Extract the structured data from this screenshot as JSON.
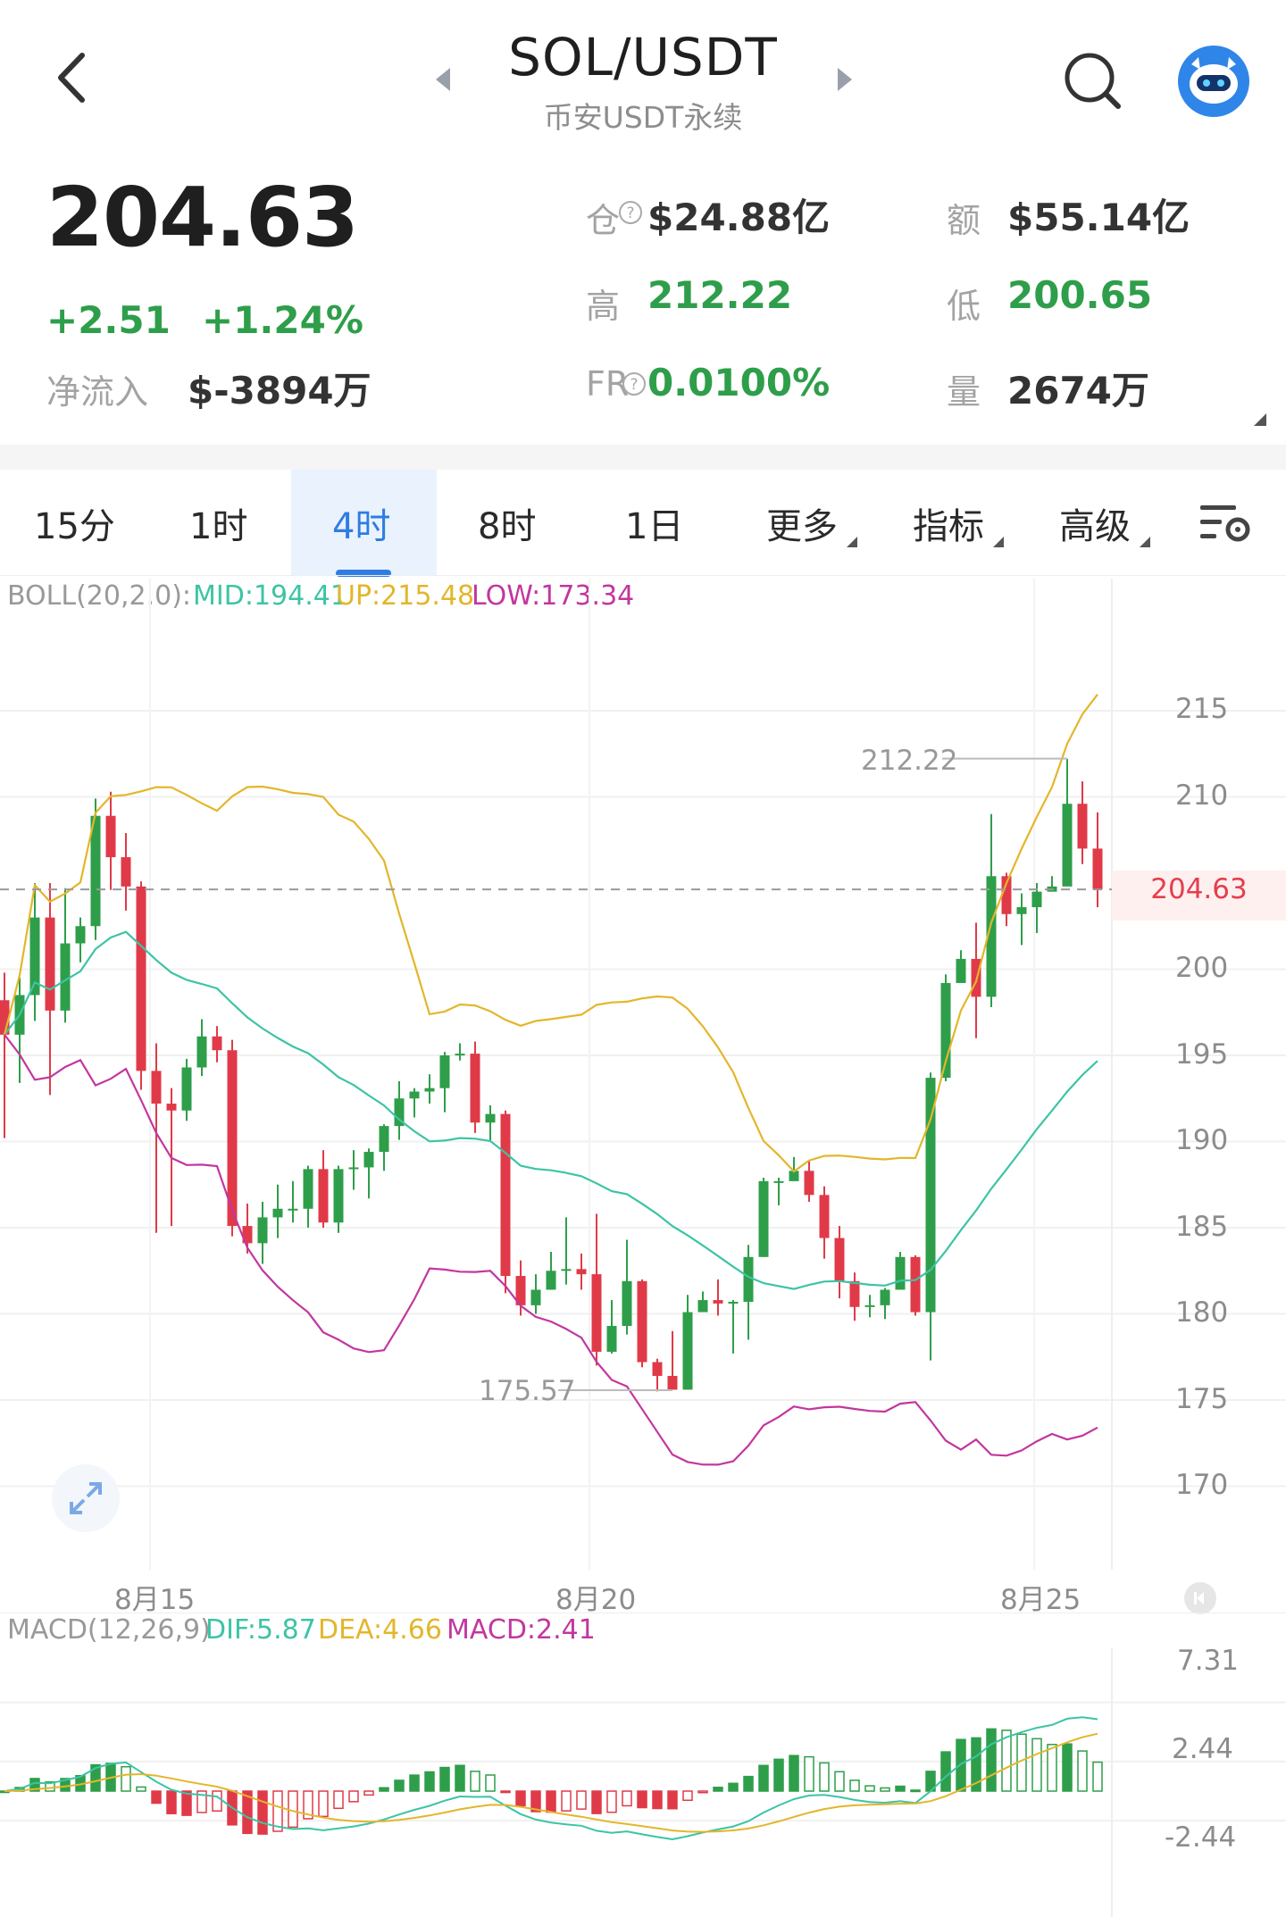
{
  "header": {
    "title": "SOL/USDT",
    "subtitle": "币安USDT永续",
    "back_icon": "chevron-left-icon",
    "prev_icon": "caret-left-icon",
    "next_icon": "caret-right-icon",
    "search_icon": "search-icon",
    "avatar_icon": "robot-avatar-icon"
  },
  "ticker": {
    "price": "204.63",
    "change": "+2.51",
    "change_pct": "+1.24%",
    "netflow_label": "净流入",
    "netflow_value": "$-3894万",
    "oi_label": "仓",
    "oi_value": "$24.88亿",
    "amount_label": "额",
    "amount_value": "$55.14亿",
    "high_label": "高",
    "high_value": "212.22",
    "low_label": "低",
    "low_value": "200.65",
    "fr_label": "FR",
    "fr_value": "0.0100%",
    "vol_label": "量",
    "vol_value": "2674万"
  },
  "tabs": [
    {
      "label": "15分"
    },
    {
      "label": "1时"
    },
    {
      "label": "4时"
    },
    {
      "label": "8时"
    },
    {
      "label": "1日"
    },
    {
      "label": "更多"
    },
    {
      "label": "指标"
    },
    {
      "label": "高级"
    }
  ],
  "active_tab": "4时",
  "settings_icon": "chart-settings-icon",
  "boll": {
    "label": "BOLL(20,2.0):",
    "mid": "MID:194.41",
    "up": "UP:215.48",
    "low": "LOW:173.34"
  },
  "macd": {
    "label": "MACD(12,26,9)",
    "dif": "DIF:5.87",
    "dea": "DEA:4.66",
    "macd": "MACD:2.41"
  },
  "price_axis": [
    "215",
    "210",
    "200",
    "195",
    "190",
    "185",
    "180",
    "175",
    "170"
  ],
  "current_price_tag": "204.63",
  "high_marker": "212.22",
  "low_marker": "175.57",
  "date_axis": [
    "8月15",
    "8月20",
    "8月25"
  ],
  "macd_axis": [
    "7.31",
    "2.44",
    "-2.44"
  ],
  "colors": {
    "up": "#2e9e4a",
    "down": "#e03a48",
    "mid": "#3cc4a5",
    "upper": "#e3b62b",
    "lower": "#c2379f",
    "accent": "#2f7de1"
  },
  "chart_data": {
    "type": "candlestick",
    "interval": "4h",
    "ylim": [
      166,
      220
    ],
    "candles": [
      [
        198.2,
        196.2,
        199.8,
        190.2
      ],
      [
        196.2,
        198.5,
        199.5,
        193.4
      ],
      [
        198.5,
        203.0,
        205.0,
        197.0
      ],
      [
        203.0,
        197.6,
        205.0,
        192.7
      ],
      [
        197.6,
        201.5,
        204.7,
        196.9
      ],
      [
        201.5,
        202.5,
        203.0,
        200.4
      ],
      [
        202.5,
        208.9,
        209.9,
        201.7
      ],
      [
        208.9,
        206.5,
        210.3,
        204.6
      ],
      [
        206.5,
        204.8,
        207.9,
        203.4
      ],
      [
        204.8,
        194.1,
        205.1,
        193.0
      ],
      [
        194.1,
        192.2,
        195.7,
        184.7
      ],
      [
        192.2,
        191.8,
        193.1,
        185.1
      ],
      [
        191.8,
        194.3,
        194.8,
        191.2
      ],
      [
        194.3,
        196.1,
        197.1,
        193.8
      ],
      [
        196.1,
        195.3,
        196.7,
        194.6
      ],
      [
        195.3,
        185.1,
        195.9,
        184.5
      ],
      [
        185.1,
        184.1,
        186.4,
        183.5
      ],
      [
        184.1,
        185.6,
        186.5,
        182.9
      ],
      [
        185.6,
        186.1,
        187.5,
        184.4
      ],
      [
        186.1,
        186.1,
        187.7,
        185.3
      ],
      [
        186.1,
        188.4,
        188.6,
        185.0
      ],
      [
        188.4,
        185.3,
        189.5,
        185.0
      ],
      [
        185.3,
        188.4,
        188.6,
        184.7
      ],
      [
        188.4,
        188.5,
        189.5,
        187.2
      ],
      [
        188.5,
        189.4,
        189.6,
        186.7
      ],
      [
        189.4,
        190.9,
        191.0,
        188.3
      ],
      [
        190.9,
        192.5,
        193.5,
        190.1
      ],
      [
        192.5,
        192.9,
        193.1,
        191.4
      ],
      [
        192.9,
        193.1,
        193.9,
        192.2
      ],
      [
        193.1,
        195.0,
        195.2,
        191.7
      ],
      [
        195.0,
        195.1,
        195.7,
        194.7
      ],
      [
        195.1,
        191.1,
        195.8,
        190.5
      ],
      [
        191.1,
        191.6,
        192.1,
        190.0
      ],
      [
        191.6,
        182.2,
        191.8,
        181.2
      ],
      [
        182.2,
        180.5,
        183.1,
        179.9
      ],
      [
        180.5,
        181.4,
        182.3,
        180.0
      ],
      [
        181.4,
        182.5,
        183.6,
        181.4
      ],
      [
        182.5,
        182.6,
        185.6,
        181.7
      ],
      [
        182.6,
        182.3,
        183.5,
        181.4
      ],
      [
        182.3,
        177.8,
        185.8,
        177.0
      ],
      [
        177.8,
        179.3,
        180.8,
        177.7
      ],
      [
        179.3,
        181.9,
        184.3,
        178.8
      ],
      [
        181.9,
        177.2,
        182.0,
        176.9
      ],
      [
        177.2,
        176.4,
        177.4,
        175.5
      ],
      [
        176.4,
        175.6,
        179.0,
        175.6
      ],
      [
        175.6,
        180.1,
        181.1,
        175.8
      ],
      [
        180.1,
        180.8,
        181.3,
        180.3
      ],
      [
        180.8,
        180.6,
        182.0,
        179.9
      ],
      [
        180.6,
        180.7,
        180.8,
        177.7
      ],
      [
        180.7,
        183.3,
        184.0,
        178.5
      ],
      [
        183.3,
        187.7,
        187.9,
        183.3
      ],
      [
        187.7,
        187.7,
        187.9,
        186.3
      ],
      [
        187.7,
        188.3,
        189.1,
        187.8
      ],
      [
        188.3,
        186.9,
        188.9,
        186.5
      ],
      [
        186.9,
        184.4,
        187.4,
        183.2
      ],
      [
        184.4,
        181.9,
        185.1,
        180.9
      ],
      [
        181.9,
        180.4,
        182.4,
        179.6
      ],
      [
        180.4,
        180.5,
        181.1,
        179.8
      ],
      [
        180.5,
        181.4,
        181.5,
        179.7
      ],
      [
        181.4,
        183.3,
        183.6,
        181.6
      ],
      [
        183.3,
        180.1,
        183.4,
        179.9
      ],
      [
        180.1,
        193.7,
        194.0,
        177.3
      ],
      [
        193.7,
        199.2,
        199.7,
        193.5
      ],
      [
        199.2,
        200.6,
        201.1,
        200.0
      ],
      [
        200.6,
        198.4,
        202.7,
        196.0
      ],
      [
        198.4,
        205.4,
        209.0,
        197.8
      ],
      [
        205.4,
        203.2,
        205.6,
        202.5
      ],
      [
        203.2,
        203.6,
        204.4,
        201.4
      ],
      [
        203.6,
        204.5,
        205.0,
        202.1
      ],
      [
        204.5,
        204.8,
        205.4,
        204.5
      ],
      [
        204.8,
        209.6,
        212.2,
        205.6
      ],
      [
        209.6,
        207.0,
        210.9,
        206.1
      ],
      [
        207.0,
        204.63,
        209.1,
        203.6
      ]
    ],
    "bollinger": {
      "mid_label": "MID:194.41",
      "up_label": "UP:215.48",
      "low_label": "LOW:173.34"
    },
    "macd_ylim": [
      -6,
      9
    ]
  }
}
